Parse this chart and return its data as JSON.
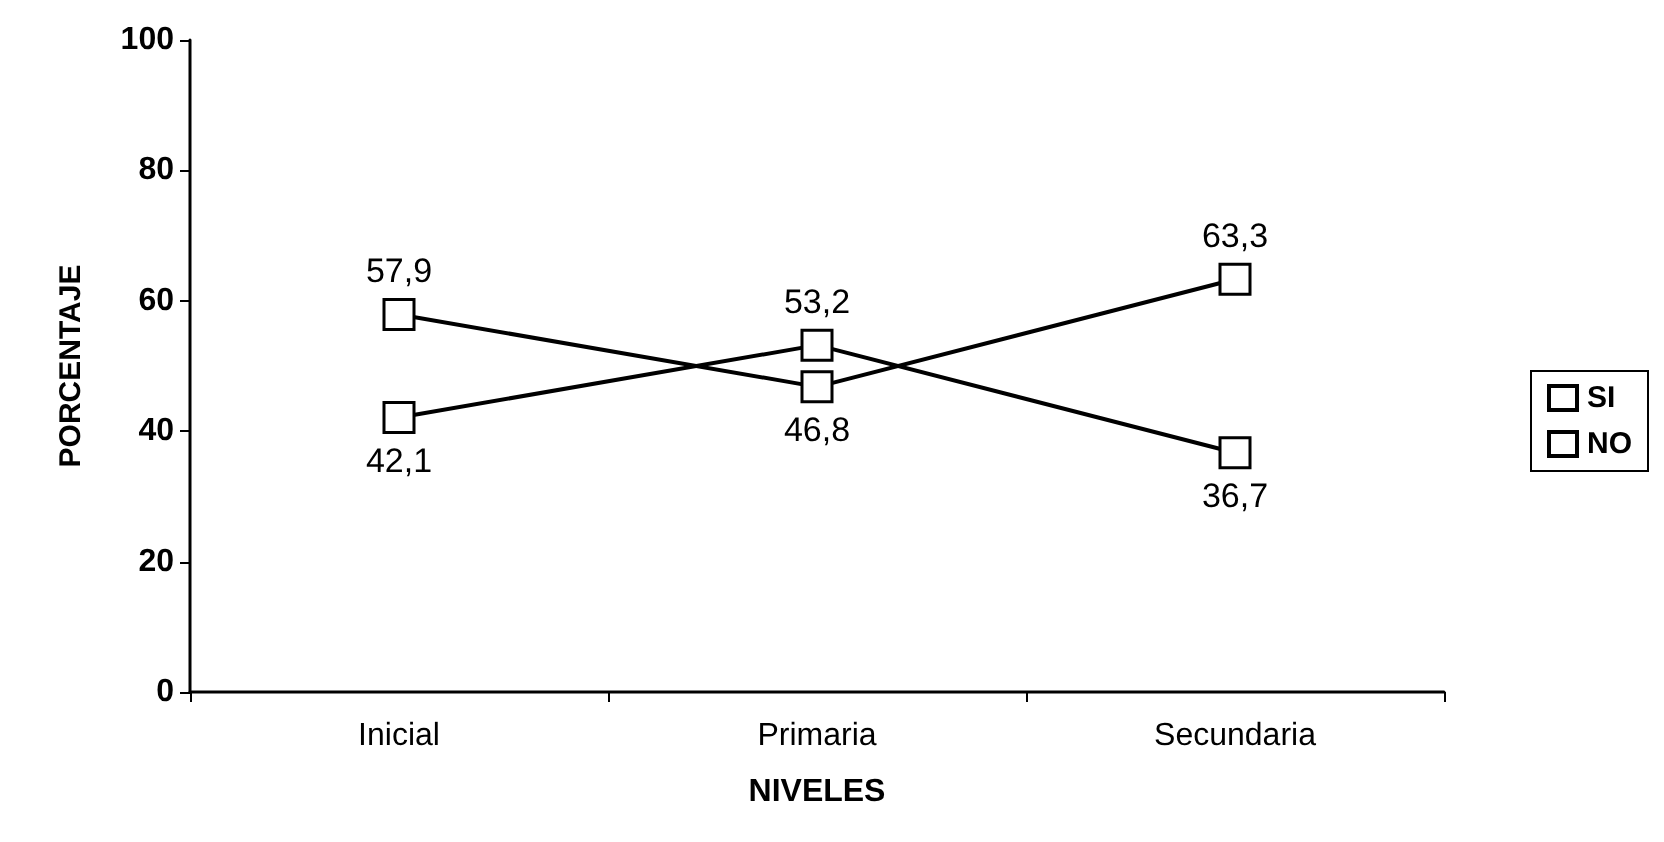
{
  "chart_data": {
    "type": "line",
    "xlabel": "NIVELES",
    "ylabel": "PORCENTAJE",
    "categories": [
      "Inicial",
      "Primaria",
      "Secundaria"
    ],
    "series": [
      {
        "name": "SI",
        "color": "#000000",
        "values": [
          42.1,
          53.2,
          36.7
        ],
        "value_labels": [
          "42,1",
          "53,2",
          "36,7"
        ]
      },
      {
        "name": "NO",
        "color": "#000000",
        "values": [
          57.9,
          46.8,
          63.3
        ],
        "value_labels": [
          "57,9",
          "46,8",
          "63,3"
        ]
      }
    ],
    "ylim": [
      0,
      100
    ],
    "yticks": [
      0,
      20,
      40,
      60,
      80,
      100
    ],
    "grid": false,
    "legend": "right",
    "marker": "square",
    "line_style": "solid"
  }
}
